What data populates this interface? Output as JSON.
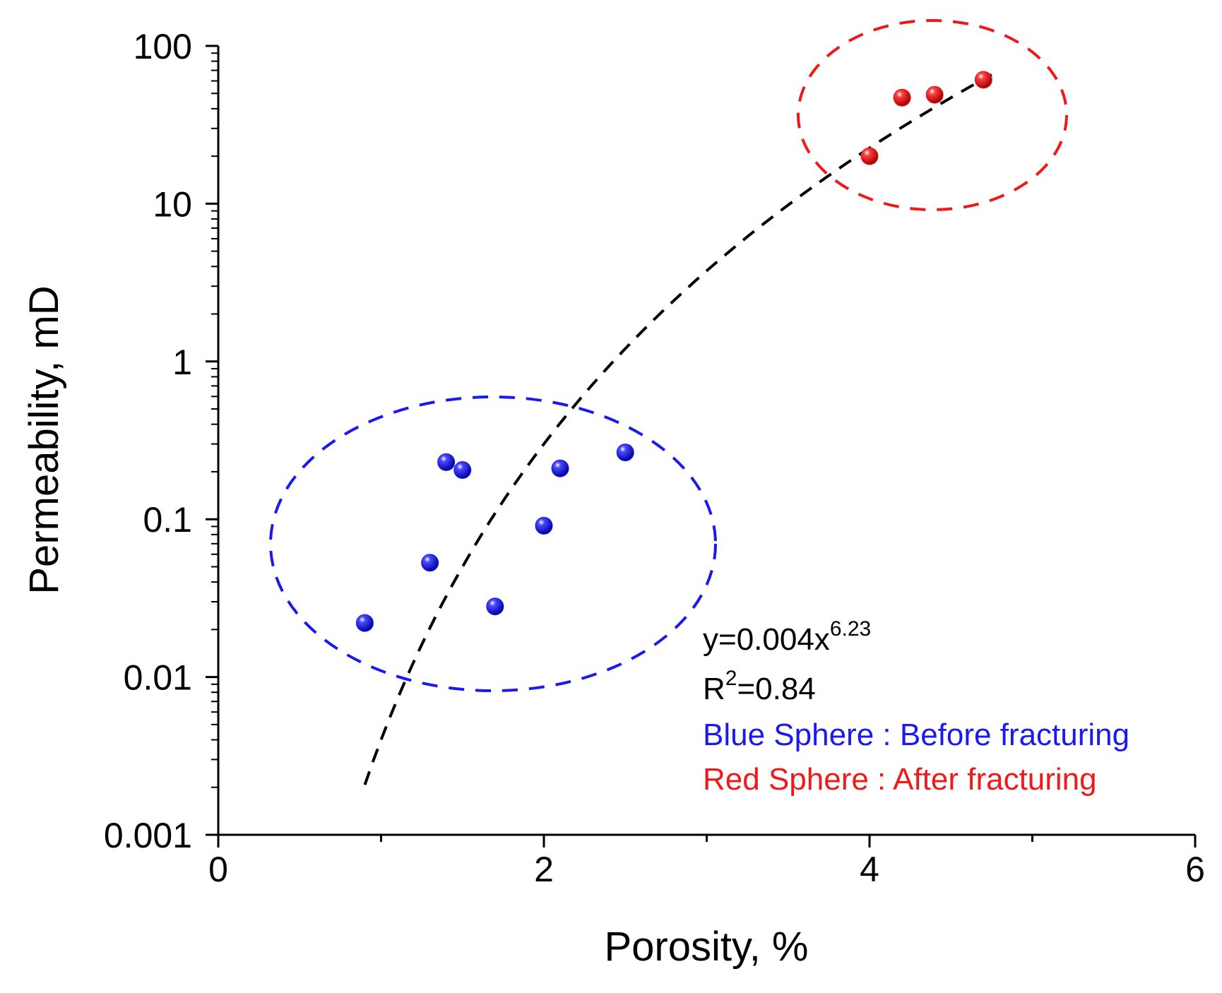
{
  "chart_data": {
    "type": "scatter",
    "title": "",
    "xlabel": "Porosity, %",
    "ylabel": "Permeability, mD",
    "xlim": [
      0,
      6
    ],
    "ylim": [
      0.001,
      100
    ],
    "yscale": "log",
    "grid": false,
    "x_ticks": [
      0,
      2,
      4,
      6
    ],
    "x_minor_ticks": [
      1,
      3,
      5
    ],
    "y_ticks": [
      0.001,
      0.01,
      0.1,
      1,
      10,
      100
    ],
    "x_tick_labels": [
      "0",
      "2",
      "4",
      "6"
    ],
    "y_tick_labels": [
      "0.001",
      "0.01",
      "0.1",
      "1",
      "10",
      "100"
    ],
    "series": [
      {
        "name": "Blue Sphere : Before fracturing",
        "color": "#1a1aee",
        "points": [
          {
            "x": 0.9,
            "y": 0.022
          },
          {
            "x": 1.3,
            "y": 0.053
          },
          {
            "x": 1.4,
            "y": 0.23
          },
          {
            "x": 1.5,
            "y": 0.205
          },
          {
            "x": 1.7,
            "y": 0.028
          },
          {
            "x": 2.0,
            "y": 0.091
          },
          {
            "x": 2.1,
            "y": 0.21
          },
          {
            "x": 2.5,
            "y": 0.265
          }
        ]
      },
      {
        "name": "Red Sphere : After fracturing",
        "color": "#ee1a1a",
        "points": [
          {
            "x": 4.0,
            "y": 20
          },
          {
            "x": 4.2,
            "y": 47
          },
          {
            "x": 4.4,
            "y": 49
          },
          {
            "x": 4.7,
            "y": 61
          }
        ]
      }
    ],
    "fit": {
      "type": "power",
      "a": 0.004,
      "b": 6.23,
      "x_range": [
        0.9,
        4.75
      ],
      "equation_prefix": "y=0.004x",
      "equation_exponent": "6.23",
      "r2_prefix": "R",
      "r2_exponent": "2",
      "r2_value": "=0.84",
      "color": "#000000"
    },
    "annotations": [
      {
        "text": "Blue Sphere : Before fracturing",
        "color": "#1a1aee"
      },
      {
        "text": "Red Sphere : After fracturing",
        "color": "#ee1a1a"
      }
    ],
    "group_ellipses": [
      {
        "group": "before",
        "color": "#1a1aee"
      },
      {
        "group": "after",
        "color": "#ee1a1a"
      }
    ]
  }
}
